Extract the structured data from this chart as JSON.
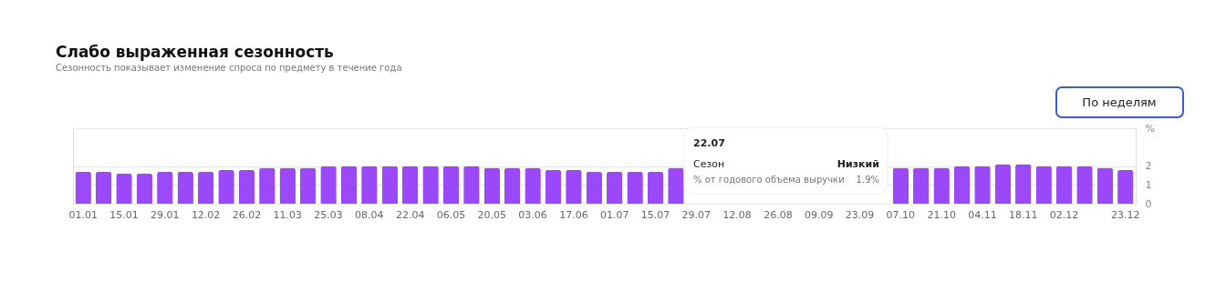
{
  "chart_data": {
    "type": "bar",
    "title": "Слабо выраженная сезонность",
    "subtitle": "Сезонность показывает изменение спроса по предмету в течение года",
    "categories": [
      "01.01",
      null,
      "15.01",
      null,
      "29.01",
      null,
      "12.02",
      null,
      "26.02",
      null,
      "11.03",
      null,
      "25.03",
      null,
      "08.04",
      null,
      "22.04",
      null,
      "06.05",
      null,
      "20.05",
      null,
      "03.06",
      null,
      "17.06",
      null,
      "01.07",
      null,
      "15.07",
      null,
      "29.07",
      null,
      "12.08",
      null,
      "26.08",
      null,
      "09.09",
      null,
      "23.09",
      null,
      "07.10",
      null,
      "21.10",
      null,
      "04.11",
      null,
      "18.11",
      null,
      "02.12",
      null,
      null,
      "23.12"
    ],
    "values": [
      1.7,
      1.7,
      1.6,
      1.6,
      1.7,
      1.7,
      1.7,
      1.8,
      1.8,
      1.9,
      1.9,
      1.9,
      2.0,
      2.0,
      2.0,
      2.0,
      2.0,
      2.0,
      2.0,
      2.0,
      1.9,
      1.9,
      1.9,
      1.8,
      1.8,
      1.7,
      1.7,
      1.7,
      1.7,
      1.9,
      null,
      null,
      null,
      null,
      null,
      null,
      null,
      null,
      null,
      null,
      1.9,
      1.9,
      1.9,
      2.0,
      2.0,
      2.1,
      2.1,
      2.0,
      2.0,
      2.0,
      1.9,
      1.8
    ],
    "color": "#9a48f8",
    "ylim": [
      0,
      4
    ],
    "yticks": [
      0,
      1,
      2,
      {
        "value": 4,
        "label": "%"
      }
    ],
    "grid": "y",
    "annotations": [
      "По неделям",
      "22.07",
      "Сезон",
      "Низкий",
      "% от годового объема выручки",
      "1.9%"
    ]
  }
}
